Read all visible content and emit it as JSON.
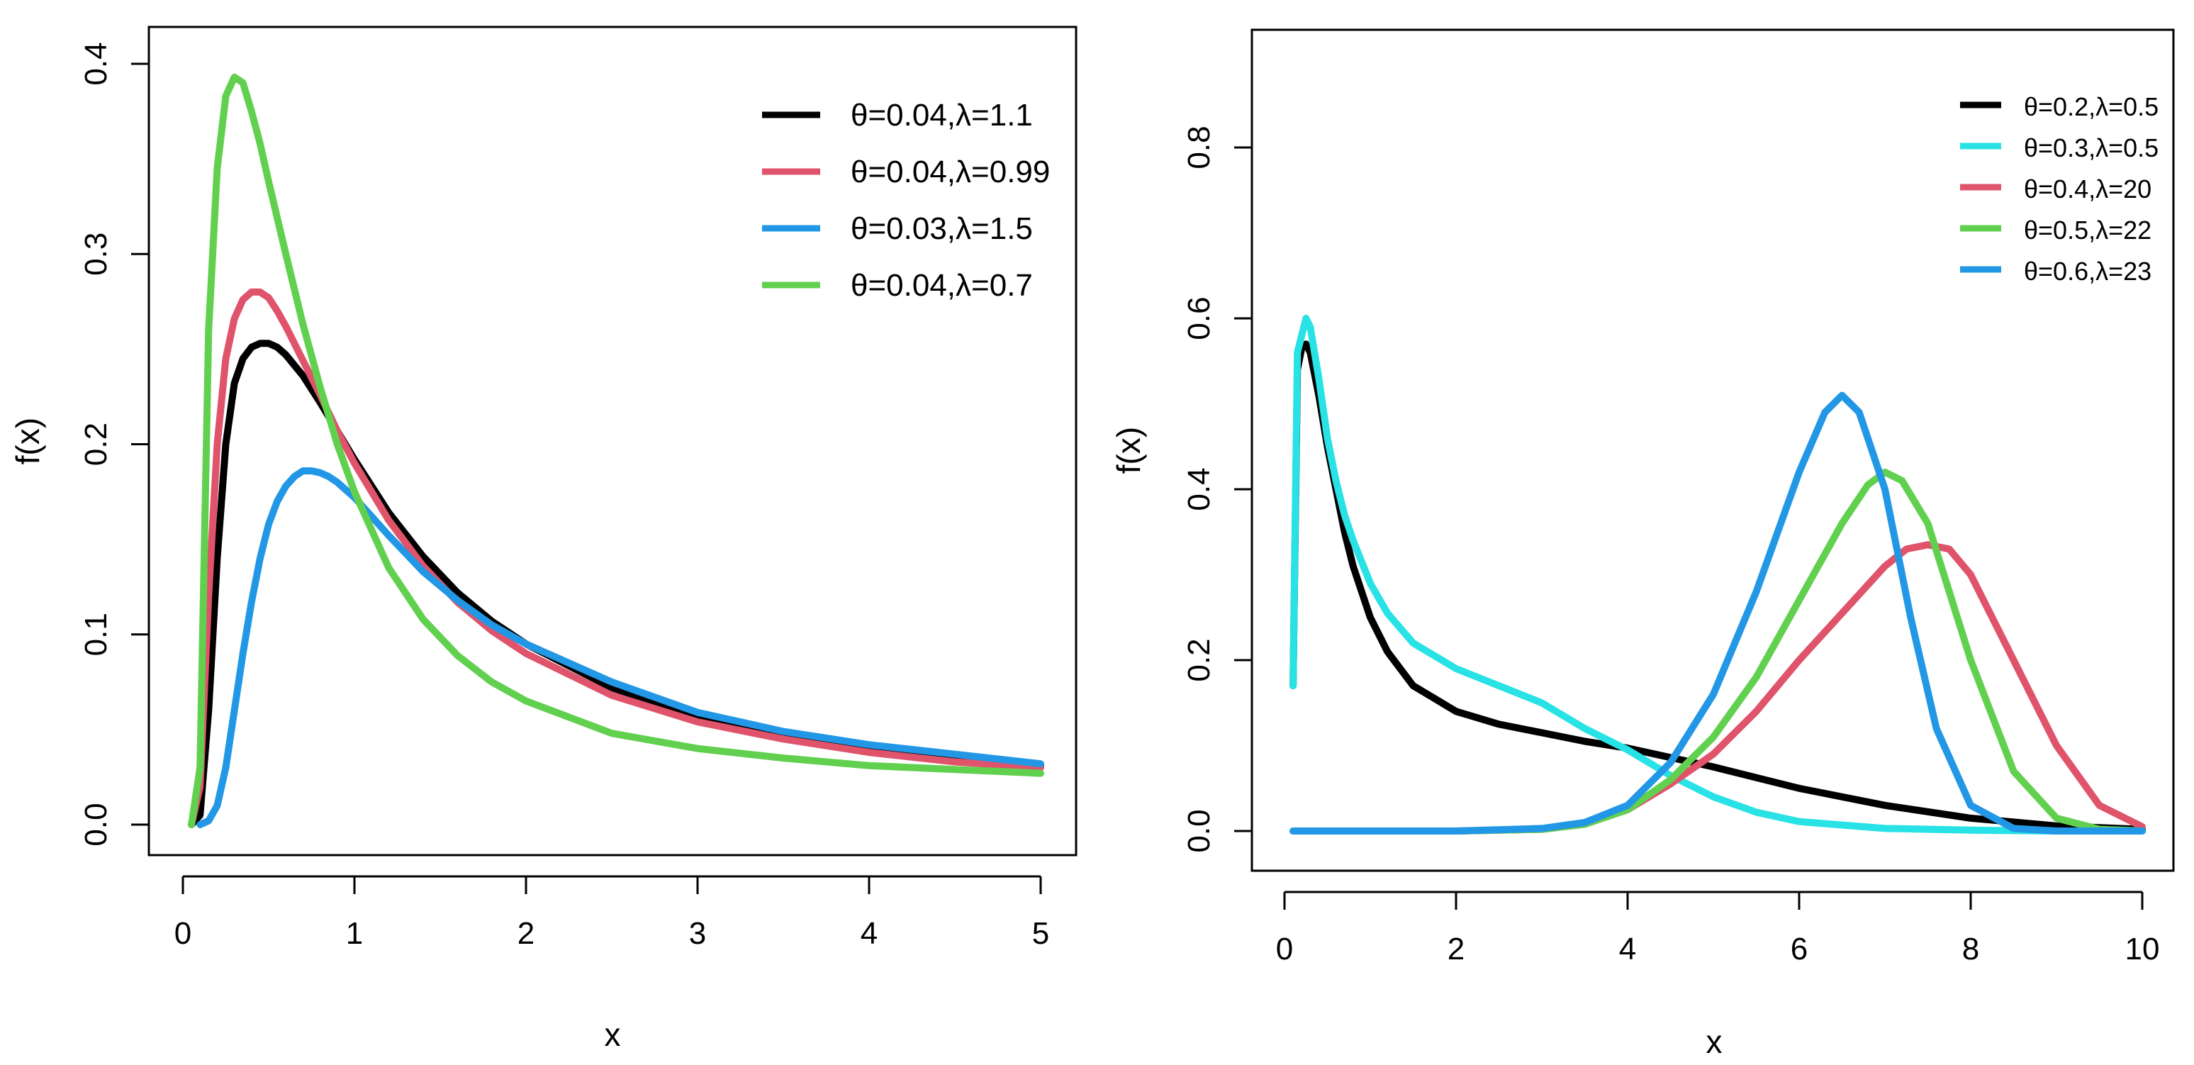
{
  "chart_data": [
    {
      "type": "line",
      "xlabel": "x",
      "ylabel": "f(x)",
      "xlim": [
        0,
        5
      ],
      "ylim": [
        0,
        0.4
      ],
      "xticks": [
        0,
        1,
        2,
        3,
        4,
        5
      ],
      "xtick_labels": [
        "0",
        "1",
        "2",
        "3",
        "4",
        "5"
      ],
      "yticks": [
        0.0,
        0.1,
        0.2,
        0.3,
        0.4
      ],
      "ytick_labels": [
        "0.0",
        "0.1",
        "0.2",
        "0.3",
        "0.4"
      ],
      "legend_position": "top-right",
      "series": [
        {
          "name": "θ=0.04,λ=1.1",
          "color": "#000000",
          "x": [
            0.05,
            0.1,
            0.15,
            0.2,
            0.25,
            0.3,
            0.35,
            0.4,
            0.45,
            0.5,
            0.55,
            0.6,
            0.7,
            0.8,
            0.9,
            1.0,
            1.2,
            1.4,
            1.6,
            1.8,
            2.0,
            2.5,
            3.0,
            3.5,
            4.0,
            4.5,
            5.0
          ],
          "y": [
            0.0,
            0.005,
            0.06,
            0.14,
            0.2,
            0.232,
            0.245,
            0.251,
            0.253,
            0.253,
            0.251,
            0.247,
            0.236,
            0.222,
            0.207,
            0.192,
            0.164,
            0.141,
            0.122,
            0.107,
            0.095,
            0.072,
            0.057,
            0.047,
            0.04,
            0.035,
            0.031
          ]
        },
        {
          "name": "θ=0.04,λ=0.99",
          "color": "#df536b",
          "x": [
            0.05,
            0.1,
            0.15,
            0.2,
            0.25,
            0.3,
            0.35,
            0.4,
            0.45,
            0.5,
            0.55,
            0.6,
            0.7,
            0.8,
            0.9,
            1.0,
            1.2,
            1.4,
            1.6,
            1.8,
            2.0,
            2.5,
            3.0,
            3.5,
            4.0,
            4.5,
            5.0
          ],
          "y": [
            0.0,
            0.02,
            0.12,
            0.2,
            0.245,
            0.266,
            0.276,
            0.28,
            0.28,
            0.277,
            0.27,
            0.262,
            0.244,
            0.226,
            0.207,
            0.19,
            0.16,
            0.136,
            0.117,
            0.102,
            0.09,
            0.068,
            0.054,
            0.045,
            0.038,
            0.033,
            0.03
          ]
        },
        {
          "name": "θ=0.03,λ=1.5",
          "color": "#2297e6",
          "x": [
            0.1,
            0.15,
            0.2,
            0.25,
            0.3,
            0.35,
            0.4,
            0.45,
            0.5,
            0.55,
            0.6,
            0.65,
            0.7,
            0.75,
            0.8,
            0.85,
            0.9,
            1.0,
            1.1,
            1.2,
            1.4,
            1.6,
            1.8,
            2.0,
            2.5,
            3.0,
            3.5,
            4.0,
            4.5,
            5.0
          ],
          "y": [
            0.0,
            0.002,
            0.01,
            0.03,
            0.06,
            0.09,
            0.117,
            0.14,
            0.158,
            0.17,
            0.178,
            0.183,
            0.186,
            0.186,
            0.185,
            0.183,
            0.18,
            0.172,
            0.162,
            0.152,
            0.133,
            0.118,
            0.105,
            0.095,
            0.075,
            0.059,
            0.049,
            0.042,
            0.037,
            0.032
          ]
        },
        {
          "name": "θ=0.04,λ=0.7",
          "color": "#61d04f",
          "x": [
            0.05,
            0.1,
            0.15,
            0.2,
            0.25,
            0.3,
            0.35,
            0.4,
            0.45,
            0.5,
            0.6,
            0.7,
            0.8,
            0.9,
            1.0,
            1.2,
            1.4,
            1.6,
            1.8,
            2.0,
            2.5,
            3.0,
            3.5,
            4.0,
            4.5,
            5.0
          ],
          "y": [
            0.0,
            0.03,
            0.26,
            0.345,
            0.383,
            0.393,
            0.39,
            0.375,
            0.358,
            0.338,
            0.3,
            0.263,
            0.23,
            0.2,
            0.175,
            0.135,
            0.108,
            0.089,
            0.075,
            0.065,
            0.048,
            0.04,
            0.035,
            0.031,
            0.029,
            0.027
          ]
        }
      ]
    },
    {
      "type": "line",
      "xlabel": "x",
      "ylabel": "f(x)",
      "xlim": [
        0,
        10
      ],
      "ylim": [
        0,
        0.9
      ],
      "xticks": [
        0,
        2,
        4,
        6,
        8,
        10
      ],
      "xtick_labels": [
        "0",
        "2",
        "4",
        "6",
        "8",
        "10"
      ],
      "yticks": [
        0.0,
        0.2,
        0.4,
        0.6,
        0.8
      ],
      "ytick_labels": [
        "0.0",
        "0.2",
        "0.4",
        "0.6",
        "0.8"
      ],
      "legend_position": "top-right",
      "series": [
        {
          "name": "θ=0.2,λ=0.5",
          "color": "#000000",
          "x": [
            0.1,
            0.15,
            0.2,
            0.25,
            0.3,
            0.4,
            0.5,
            0.6,
            0.7,
            0.8,
            1.0,
            1.2,
            1.5,
            2.0,
            2.5,
            3.0,
            3.5,
            4.0,
            5.0,
            6.0,
            7.0,
            8.0,
            9.0,
            10.0
          ],
          "y": [
            0.17,
            0.54,
            0.565,
            0.57,
            0.56,
            0.51,
            0.45,
            0.4,
            0.35,
            0.31,
            0.25,
            0.21,
            0.17,
            0.14,
            0.125,
            0.115,
            0.105,
            0.097,
            0.075,
            0.05,
            0.03,
            0.015,
            0.006,
            0.002
          ]
        },
        {
          "name": "θ=0.3,λ=0.5",
          "color": "#28e2e5",
          "x": [
            0.1,
            0.15,
            0.2,
            0.25,
            0.3,
            0.4,
            0.5,
            0.6,
            0.7,
            0.8,
            1.0,
            1.2,
            1.5,
            2.0,
            2.5,
            3.0,
            3.5,
            4.0,
            4.5,
            5.0,
            5.5,
            6.0,
            7.0,
            8.0,
            9.0,
            10.0
          ],
          "y": [
            0.17,
            0.56,
            0.58,
            0.6,
            0.59,
            0.53,
            0.46,
            0.41,
            0.37,
            0.34,
            0.29,
            0.255,
            0.22,
            0.19,
            0.17,
            0.15,
            0.12,
            0.095,
            0.065,
            0.04,
            0.022,
            0.011,
            0.003,
            0.001,
            0.0,
            0.0
          ]
        },
        {
          "name": "θ=0.4,λ=20",
          "color": "#df536b",
          "x": [
            0.1,
            1.0,
            2.0,
            3.0,
            3.5,
            4.0,
            4.5,
            5.0,
            5.5,
            6.0,
            6.5,
            7.0,
            7.25,
            7.5,
            7.75,
            8.0,
            8.5,
            9.0,
            9.5,
            10.0
          ],
          "y": [
            0.0,
            0.0,
            0.0,
            0.002,
            0.008,
            0.025,
            0.055,
            0.09,
            0.14,
            0.2,
            0.255,
            0.31,
            0.33,
            0.335,
            0.33,
            0.3,
            0.2,
            0.1,
            0.03,
            0.005
          ]
        },
        {
          "name": "θ=0.5,λ=22",
          "color": "#61d04f",
          "x": [
            0.1,
            1.0,
            2.0,
            3.0,
            3.5,
            4.0,
            4.5,
            5.0,
            5.5,
            6.0,
            6.5,
            6.8,
            7.0,
            7.2,
            7.5,
            8.0,
            8.5,
            9.0,
            9.5,
            10.0
          ],
          "y": [
            0.0,
            0.0,
            0.0,
            0.002,
            0.008,
            0.025,
            0.06,
            0.11,
            0.18,
            0.27,
            0.36,
            0.405,
            0.42,
            0.41,
            0.36,
            0.2,
            0.07,
            0.015,
            0.002,
            0.0
          ]
        },
        {
          "name": "θ=0.6,λ=23",
          "color": "#2297e6",
          "x": [
            0.1,
            1.0,
            2.0,
            3.0,
            3.5,
            4.0,
            4.5,
            5.0,
            5.5,
            6.0,
            6.3,
            6.5,
            6.7,
            7.0,
            7.3,
            7.6,
            8.0,
            8.5,
            9.0,
            10.0
          ],
          "y": [
            0.0,
            0.0,
            0.0,
            0.003,
            0.01,
            0.03,
            0.08,
            0.16,
            0.28,
            0.42,
            0.49,
            0.51,
            0.49,
            0.4,
            0.25,
            0.12,
            0.03,
            0.003,
            0.0,
            0.0
          ]
        }
      ]
    }
  ]
}
